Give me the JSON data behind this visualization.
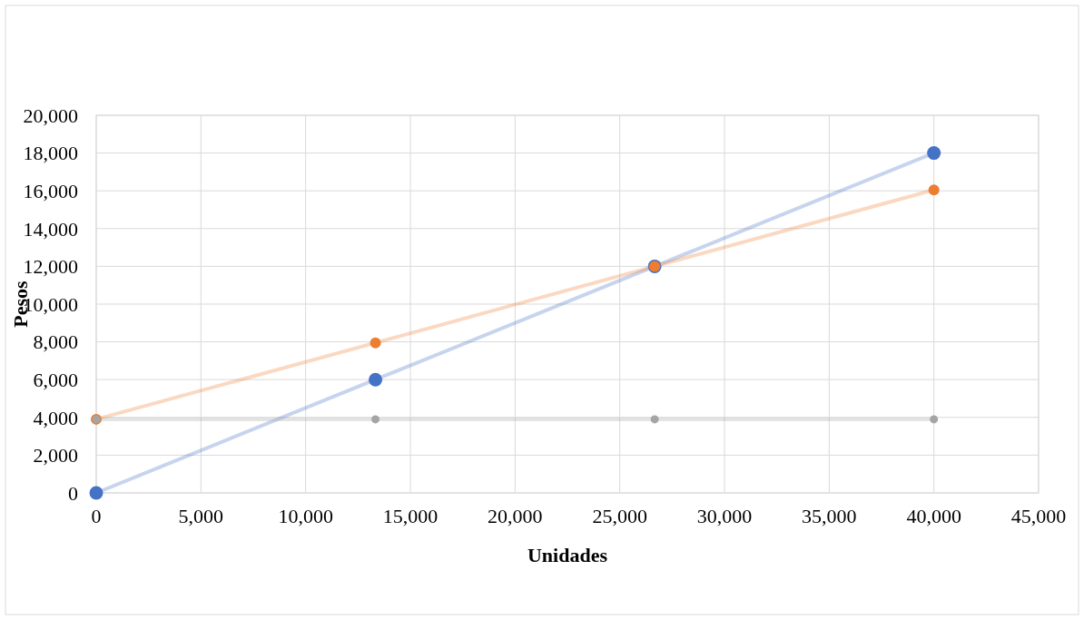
{
  "chart_data": {
    "type": "line",
    "xlabel": "Unidades",
    "ylabel": "Pesos",
    "xlim": [
      0,
      45000
    ],
    "xticks": [
      {
        "value": 0,
        "label": "0"
      },
      {
        "value": 5000,
        "label": "5,000"
      },
      {
        "value": 10000,
        "label": "10,000"
      },
      {
        "value": 15000,
        "label": "15,000"
      },
      {
        "value": 20000,
        "label": "20,000"
      },
      {
        "value": 25000,
        "label": "25,000"
      },
      {
        "value": 30000,
        "label": "30,000"
      },
      {
        "value": 35000,
        "label": "35,000"
      },
      {
        "value": 40000,
        "label": "40,000"
      },
      {
        "value": 45000,
        "label": "45,000"
      }
    ],
    "ylim": [
      0,
      20000
    ],
    "yticks": [
      {
        "value": 0,
        "label": "0"
      },
      {
        "value": 2000,
        "label": "2,000"
      },
      {
        "value": 4000,
        "label": "4,000"
      },
      {
        "value": 6000,
        "label": "6,000"
      },
      {
        "value": 8000,
        "label": "8,000"
      },
      {
        "value": 10000,
        "label": "10,000"
      },
      {
        "value": 12000,
        "label": "12,000"
      },
      {
        "value": 14000,
        "label": "14,000"
      },
      {
        "value": 16000,
        "label": "16,000"
      },
      {
        "value": 18000,
        "label": "18,000"
      },
      {
        "value": 20000,
        "label": "20,000"
      }
    ],
    "grid": true,
    "marker": "circle",
    "line_style": "solid",
    "series": [
      {
        "color": "#4472c4",
        "x": [
          0,
          13333,
          26667,
          40000
        ],
        "values": [
          0,
          6000,
          12000,
          18000
        ]
      },
      {
        "color": "#ed7d31",
        "x": [
          0,
          13333,
          26667,
          40000
        ],
        "values": [
          3900,
          7950,
          12000,
          16050
        ]
      },
      {
        "color": "#a5a5a5",
        "x": [
          0,
          13333,
          26667,
          40000
        ],
        "values": [
          3900,
          3900,
          3900,
          3900
        ]
      }
    ]
  }
}
